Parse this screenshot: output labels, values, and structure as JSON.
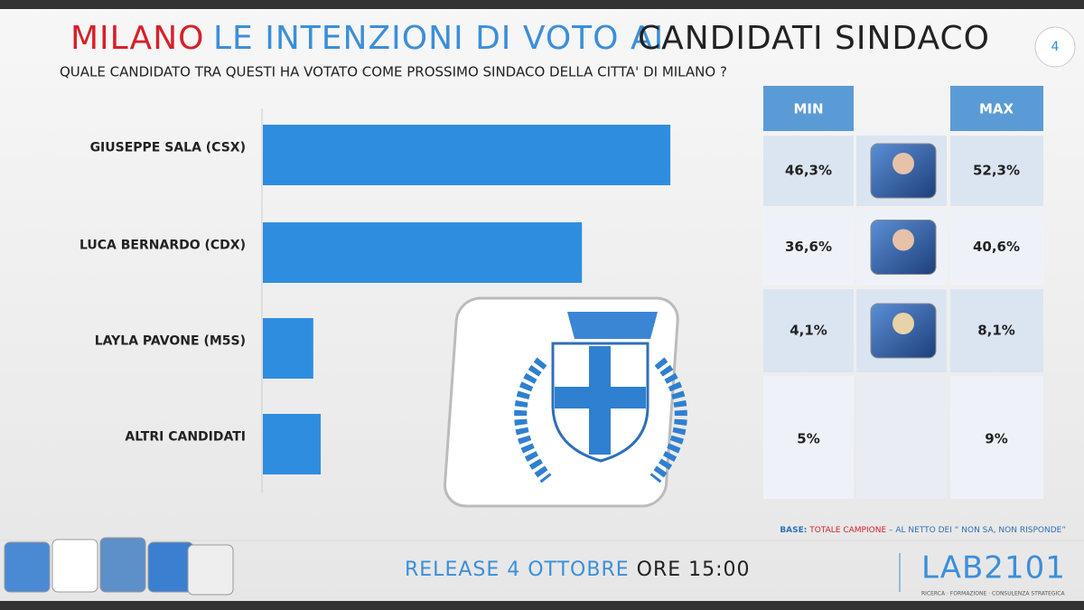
{
  "header": {
    "title_city": "MILANO",
    "title_main": "LE INTENZIONI DI VOTO AI",
    "title_end": "CANDIDATI SINDACO",
    "page": "4",
    "subtitle": "QUALE CANDIDATO TRA QUESTI HA VOTATO COME PROSSIMO SINDACO DELLA CITTA' DI MILANO ?"
  },
  "chart_data": {
    "type": "bar",
    "orientation": "horizontal",
    "categories": [
      "GIUSEPPE SALA (CSX)",
      "LUCA BERNARDO (CDX)",
      "LAYLA PAVONE (M5S)",
      "ALTRI CANDIDATI"
    ],
    "values": [
      49.3,
      38.6,
      6.1,
      7
    ],
    "color": "#2f8ddf",
    "xlim": [
      0,
      60
    ]
  },
  "table": {
    "headers": [
      "MIN",
      "MAX"
    ],
    "rows": [
      [
        "46,3%",
        "52,3%"
      ],
      [
        "36,6%",
        "40,6%"
      ],
      [
        "4,1%",
        "8,1%"
      ],
      [
        "5%",
        "9%"
      ]
    ]
  },
  "note": {
    "base": "BASE:",
    "sample": "TOTALE CAMPIONE",
    "rest": "– AL NETTO DEI “ NON SA, NON RISPONDE”"
  },
  "footer": {
    "release": "RELEASE 4 OTTOBRE",
    "time": "ORE 15:00",
    "logo": "LAB2101",
    "tagline": "RICERCA · FORMAZIONE · CONSULENZA STRATEGICA"
  }
}
